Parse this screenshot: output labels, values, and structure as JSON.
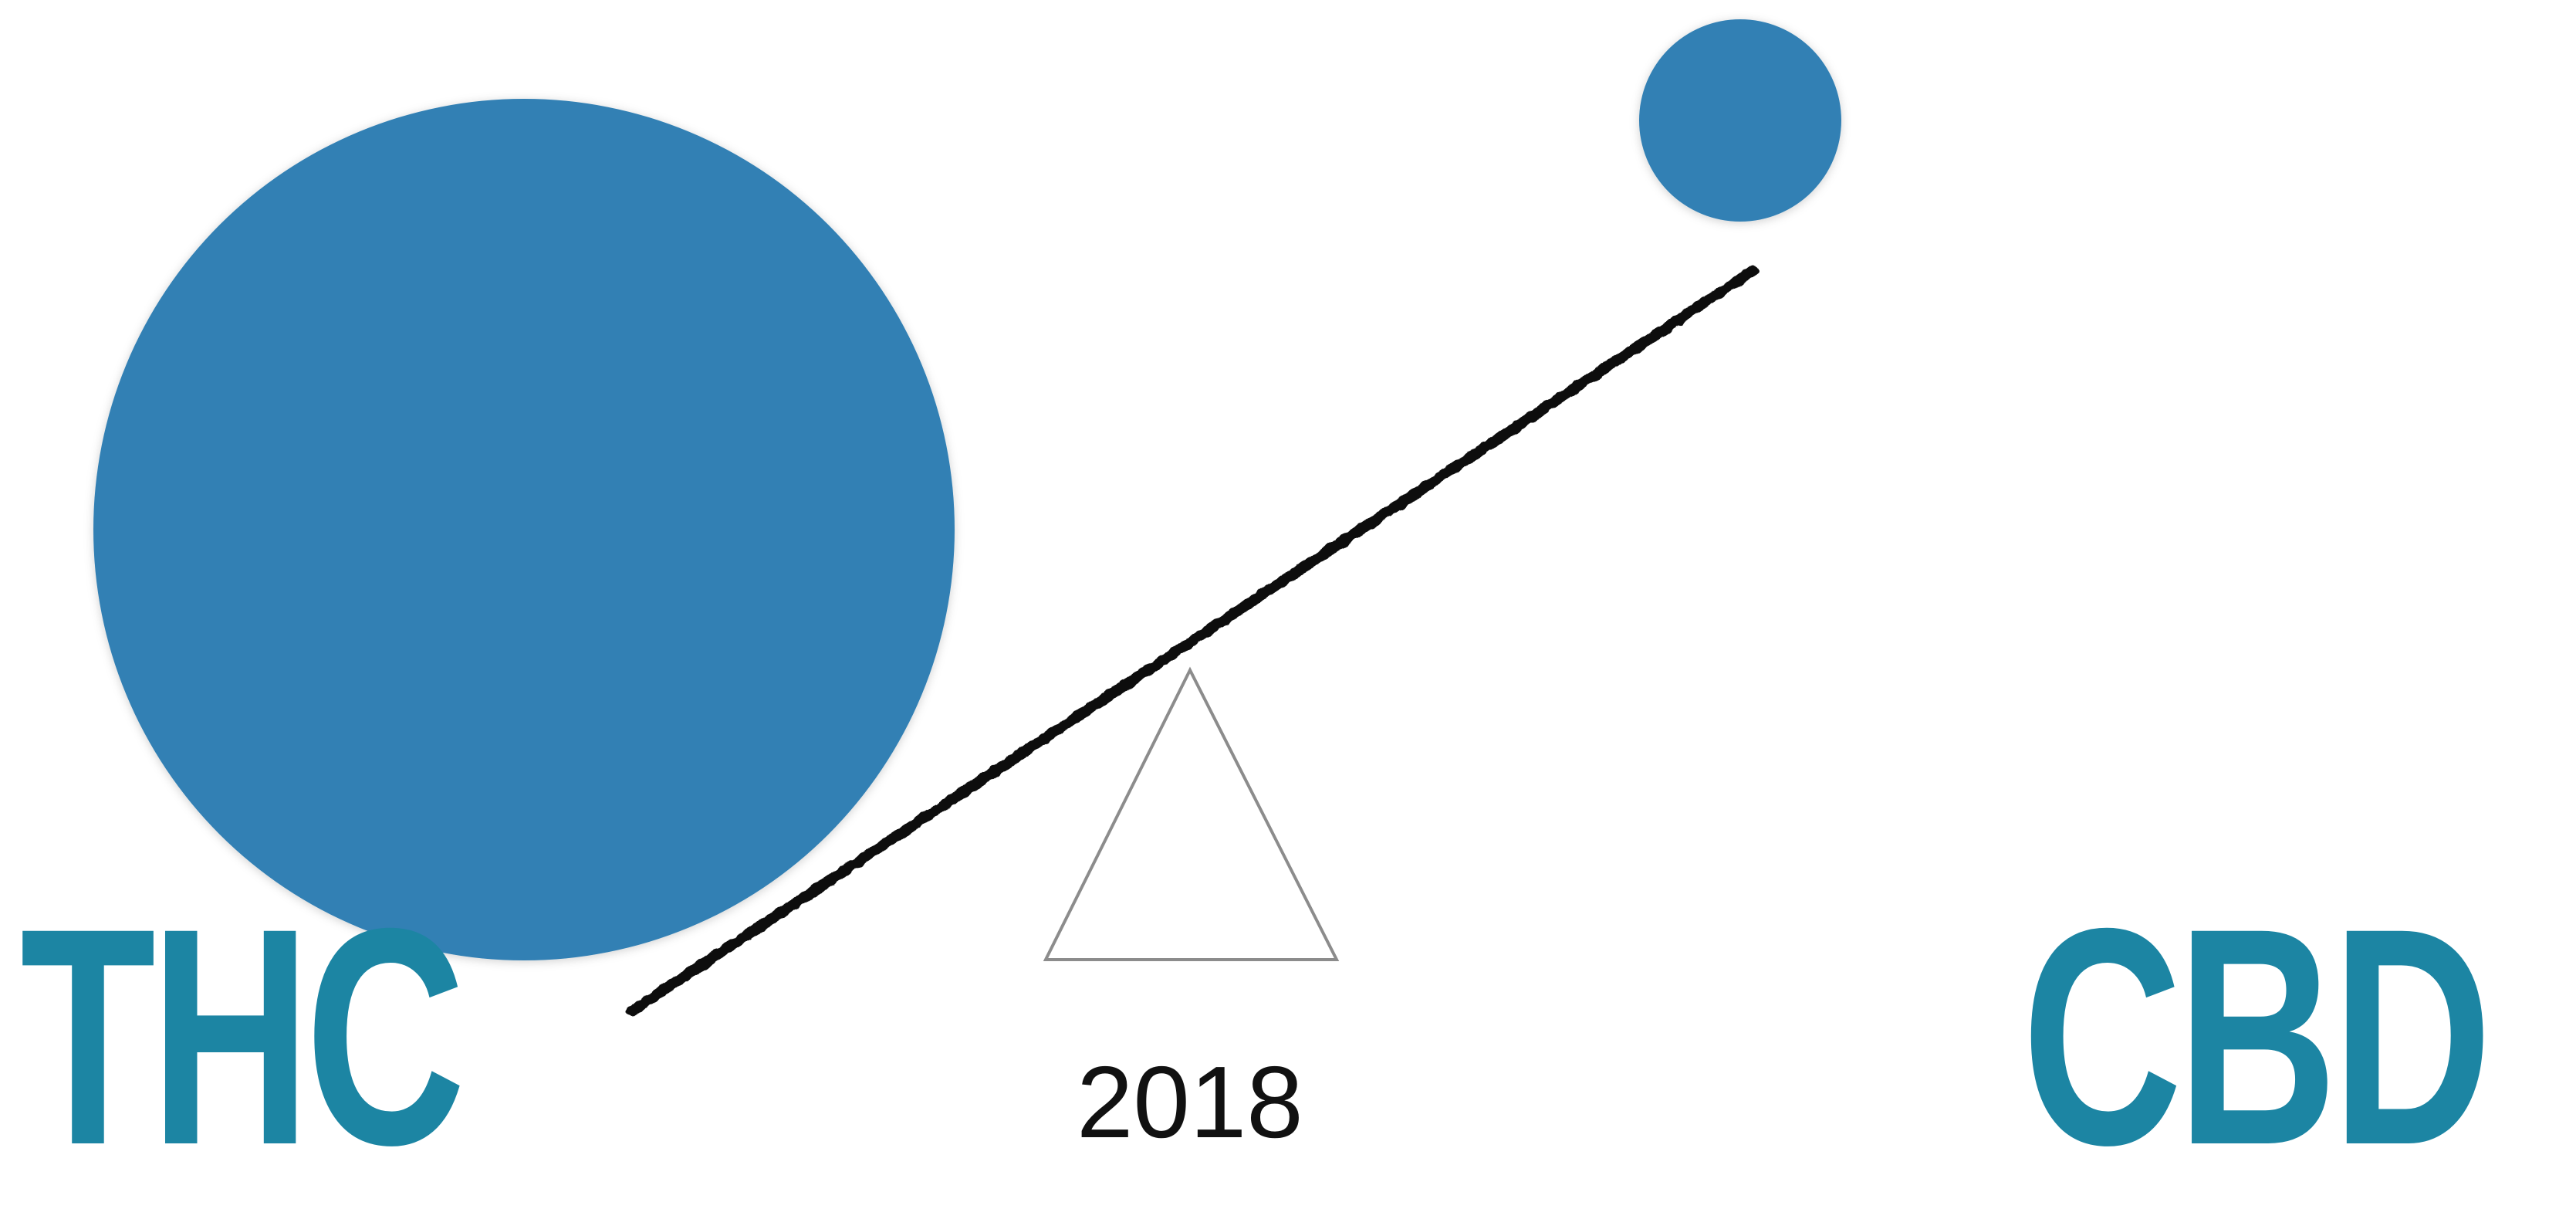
{
  "labels": {
    "left": "THC",
    "right": "CBD",
    "year": "2018"
  },
  "colors": {
    "background": "#ffffff",
    "circle_fill": "#3380b4",
    "label_text": "#1c85a3",
    "beam": "#111111",
    "fulcrum_stroke": "#8c8c8c",
    "year_text": "#111111"
  },
  "icons": {
    "large_weight": "large-circle-weight",
    "small_weight": "small-circle-weight",
    "beam": "seesaw-beam",
    "fulcrum": "triangle-fulcrum"
  }
}
